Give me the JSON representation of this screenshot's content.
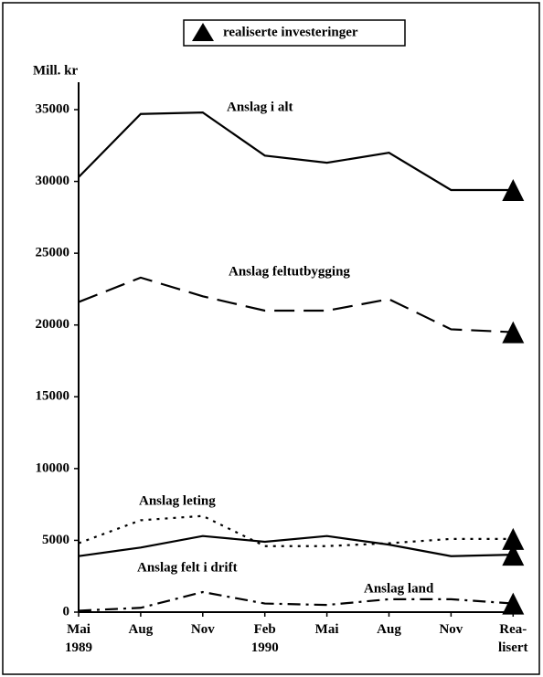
{
  "chart_data": {
    "type": "line",
    "ylabel": "Mill. kr",
    "legend": "realiserte investeringer",
    "categories": [
      "Mai\n1989",
      "Aug",
      "Nov",
      "Feb\n1990",
      "Mai",
      "Aug",
      "Nov",
      "Rea-\nlisert"
    ],
    "ylim": [
      0,
      35000
    ],
    "yticks": [
      0,
      5000,
      10000,
      15000,
      20000,
      25000,
      30000,
      35000
    ],
    "series": [
      {
        "name": "Anslag i alt",
        "color": "#000000",
        "dash": "solid",
        "values": [
          30300,
          34700,
          34800,
          31800,
          31300,
          32000,
          29400,
          29400
        ]
      },
      {
        "name": "Anslag feltutbygging",
        "color": "#000000",
        "dash": "dashed",
        "values": [
          21600,
          23300,
          22000,
          21000,
          21000,
          21800,
          19700,
          19500
        ]
      },
      {
        "name": "Anslag leting",
        "color": "#000000",
        "dash": "dotted",
        "values": [
          4800,
          6400,
          6700,
          4600,
          4600,
          4800,
          5100,
          5100
        ]
      },
      {
        "name": "Anslag felt i drift",
        "color": "#000000",
        "dash": "solid",
        "values": [
          3900,
          4500,
          5300,
          4900,
          5300,
          4700,
          3900,
          4000
        ]
      },
      {
        "name": "Anslag land",
        "color": "#000000",
        "dash": "dashdot",
        "values": [
          100,
          300,
          1400,
          600,
          500,
          900,
          900,
          600
        ]
      }
    ]
  }
}
